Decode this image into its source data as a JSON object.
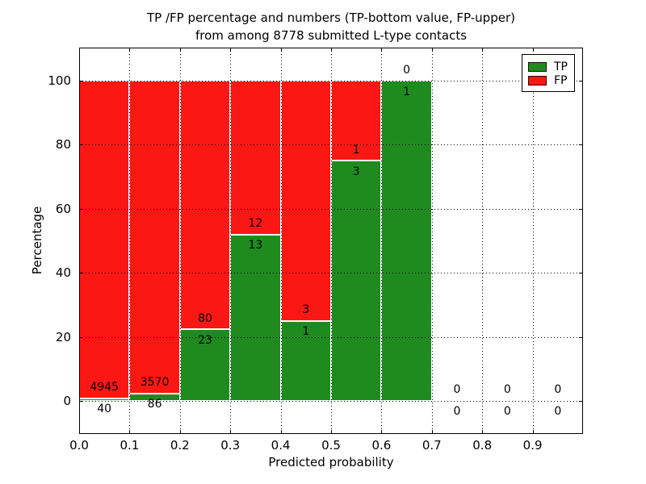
{
  "title": {
    "line1": "TP /FP percentage and numbers (TP-bottom value, FP-upper)",
    "line2": "from among 8778 submitted L-type contacts"
  },
  "axes": {
    "xlabel": "Predicted probability",
    "ylabel": "Percentage",
    "xtick_labels": [
      "0.0",
      "0.1",
      "0.2",
      "0.3",
      "0.4",
      "0.5",
      "0.6",
      "0.7",
      "0.8",
      "0.9"
    ],
    "ytick_labels": [
      "0",
      "20",
      "40",
      "60",
      "80",
      "100"
    ]
  },
  "legend": {
    "position": "upper right",
    "items": [
      {
        "label": "TP",
        "color": "#1f8b1f"
      },
      {
        "label": "FP",
        "color": "#fb1713"
      }
    ]
  },
  "chart_data": {
    "type": "bar",
    "stacked": true,
    "title": "TP /FP percentage and numbers (TP-bottom value, FP-upper) from among 8778 submitted L-type contacts",
    "xlabel": "Predicted probability",
    "ylabel": "Percentage",
    "grid": true,
    "legend_position": "upper right",
    "total_contacts_shown_in_title": 8778,
    "bins": [
      [
        0.0,
        0.1
      ],
      [
        0.1,
        0.2
      ],
      [
        0.2,
        0.3
      ],
      [
        0.3,
        0.4
      ],
      [
        0.4,
        0.5
      ],
      [
        0.5,
        0.6
      ],
      [
        0.6,
        0.7
      ],
      [
        0.7,
        0.8
      ],
      [
        0.8,
        0.9
      ],
      [
        0.9,
        1.0
      ]
    ],
    "xticks": [
      0.0,
      0.1,
      0.2,
      0.3,
      0.4,
      0.5,
      0.6,
      0.7,
      0.8,
      0.9
    ],
    "yticks": [
      0,
      20,
      40,
      60,
      80,
      100
    ],
    "xlim": [
      0.0,
      1.0
    ],
    "ylim": [
      -10.33,
      110.33
    ],
    "bar_value_unit": "percent of bin; TP+FP stack to 100% where bin is non-empty; counts printed as labels (TP below boundary, FP above)",
    "series": [
      {
        "name": "TP",
        "color": "#1f8b1f",
        "counts": [
          40,
          86,
          23,
          13,
          1,
          3,
          1,
          0,
          0,
          0
        ],
        "percent": [
          0.8,
          2.35,
          22.33,
          52.0,
          25.0,
          75.0,
          100.0,
          0,
          0,
          0
        ]
      },
      {
        "name": "FP",
        "color": "#fb1713",
        "counts": [
          4945,
          3570,
          80,
          12,
          3,
          1,
          0,
          0,
          0,
          0
        ],
        "percent": [
          99.2,
          97.65,
          77.67,
          48.0,
          75.0,
          25.0,
          0.0,
          0,
          0,
          0
        ]
      }
    ]
  }
}
